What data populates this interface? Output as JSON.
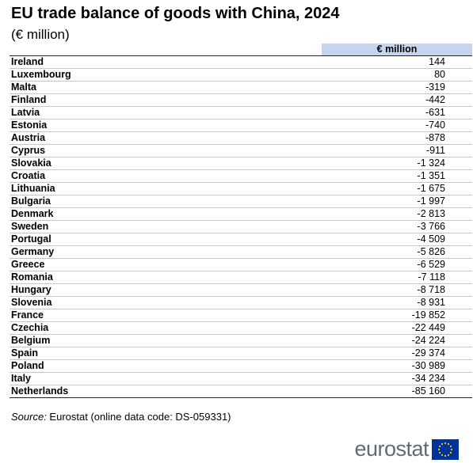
{
  "title": "EU trade balance of goods with China, 2024",
  "subtitle": "(€ million)",
  "table": {
    "column_header": "€ million",
    "rows": [
      {
        "country": "Ireland",
        "value": "144"
      },
      {
        "country": "Luxembourg",
        "value": "80"
      },
      {
        "country": "Malta",
        "value": "-319"
      },
      {
        "country": "Finland",
        "value": "-442"
      },
      {
        "country": "Latvia",
        "value": "-631"
      },
      {
        "country": "Estonia",
        "value": "-740"
      },
      {
        "country": "Austria",
        "value": "-878"
      },
      {
        "country": "Cyprus",
        "value": "-911"
      },
      {
        "country": "Slovakia",
        "value": "-1 324"
      },
      {
        "country": "Croatia",
        "value": "-1 351"
      },
      {
        "country": "Lithuania",
        "value": "-1 675"
      },
      {
        "country": "Bulgaria",
        "value": "-1 997"
      },
      {
        "country": "Denmark",
        "value": "-2 813"
      },
      {
        "country": "Sweden",
        "value": "-3 766"
      },
      {
        "country": "Portugal",
        "value": "-4 509"
      },
      {
        "country": "Germany",
        "value": "-5 826"
      },
      {
        "country": "Greece",
        "value": "-6 529"
      },
      {
        "country": "Romania",
        "value": "-7 118"
      },
      {
        "country": "Hungary",
        "value": "-8 718"
      },
      {
        "country": "Slovenia",
        "value": "-8 931"
      },
      {
        "country": "France",
        "value": "-19 852"
      },
      {
        "country": "Czechia",
        "value": "-22 449"
      },
      {
        "country": "Belgium",
        "value": "-24 224"
      },
      {
        "country": "Spain",
        "value": "-29 374"
      },
      {
        "country": "Poland",
        "value": "-30 989"
      },
      {
        "country": "Italy",
        "value": "-34 234"
      },
      {
        "country": "Netherlands",
        "value": "-85 160"
      }
    ]
  },
  "source": {
    "label": "Source:",
    "text": " Eurostat (online data code: DS-059331)"
  },
  "logo": {
    "text": "eurostat",
    "flag_color": "#003399",
    "star_color": "#ffcc00"
  }
}
